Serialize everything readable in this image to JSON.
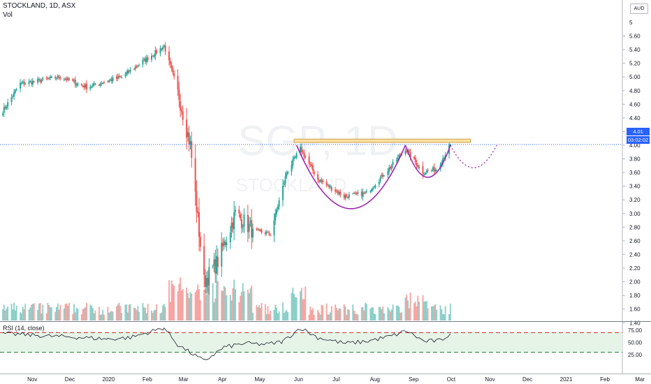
{
  "header": {
    "symbol_line": "STOCKLAND, 1D, ASX",
    "volume_label": "Vol",
    "rsi_label": "RSI (14, close)",
    "currency": "AUD",
    "watermark_symbol": "SGP, 1D",
    "watermark_name": "STOCKLAND"
  },
  "price_axis": {
    "ticks": [
      "5.60",
      "5.40",
      "5.20",
      "5.00",
      "4.80",
      "4.60",
      "4.40",
      "4.20",
      "4.00",
      "3.80",
      "3.60",
      "3.40",
      "3.20",
      "3.00",
      "2.80",
      "2.60",
      "2.40",
      "2.20",
      "2.00",
      "1.80",
      "1.60",
      "1.40"
    ],
    "top_partial": "5",
    "last_price": "4.01",
    "countdown": "03:02:02"
  },
  "rsi_axis": {
    "ticks": [
      "75.00",
      "50.00",
      "25.00"
    ]
  },
  "time_axis": {
    "months": [
      "Nov",
      "Dec",
      "2020",
      "Feb",
      "Mar",
      "Apr",
      "May",
      "Jun",
      "Jul",
      "Aug",
      "Sep",
      "Oct",
      "Nov",
      "Dec",
      "2021",
      "Feb",
      "Mar"
    ]
  },
  "colors": {
    "up": "#26a69a",
    "down": "#ef5350",
    "accent": "#2962ff",
    "pattern": "#9c27b0",
    "resistance_fill": "#ffe0a3",
    "rsi_band": "#e6f4e8"
  },
  "chart_data": [
    {
      "type": "candlestick",
      "title": "STOCKLAND, 1D, ASX",
      "unit": "AUD",
      "x_range": [
        "2019-10-14",
        "2021-03-31"
      ],
      "ylim": [
        1.3,
        5.75
      ],
      "x_months": [
        "Nov",
        "Dec",
        "2020",
        "Feb",
        "Mar",
        "Apr",
        "May",
        "Jun",
        "Jul",
        "Aug",
        "Sep",
        "Oct",
        "Nov",
        "Dec",
        "2021",
        "Feb",
        "Mar"
      ],
      "close_path": [
        {
          "x": "2019-10-14",
          "close": 4.5
        },
        {
          "x": "2019-10-28",
          "close": 4.9
        },
        {
          "x": "2019-11-29",
          "close": 5.0
        },
        {
          "x": "2019-12-20",
          "close": 4.85
        },
        {
          "x": "2020-01-17",
          "close": 5.0
        },
        {
          "x": "2020-02-20",
          "close": 5.45
        },
        {
          "x": "2020-03-02",
          "close": 4.8
        },
        {
          "x": "2020-03-12",
          "close": 4.0
        },
        {
          "x": "2020-03-23",
          "close": 2.0
        },
        {
          "x": "2020-04-03",
          "close": 2.3
        },
        {
          "x": "2020-04-17",
          "close": 3.0
        },
        {
          "x": "2020-05-01",
          "close": 2.75
        },
        {
          "x": "2020-05-15",
          "close": 2.7
        },
        {
          "x": "2020-05-28",
          "close": 3.6
        },
        {
          "x": "2020-06-08",
          "close": 3.95
        },
        {
          "x": "2020-06-22",
          "close": 3.5
        },
        {
          "x": "2020-07-13",
          "close": 3.25
        },
        {
          "x": "2020-07-31",
          "close": 3.3
        },
        {
          "x": "2020-08-20",
          "close": 3.7
        },
        {
          "x": "2020-08-31",
          "close": 3.95
        },
        {
          "x": "2020-09-14",
          "close": 3.6
        },
        {
          "x": "2020-09-25",
          "close": 3.65
        },
        {
          "x": "2020-10-06",
          "close": 4.01
        }
      ],
      "annotations": {
        "resistance_zone": {
          "from": "2020-06-03",
          "to": "2020-10-22",
          "low": 4.04,
          "high": 4.09
        },
        "last_price_line": 4.01,
        "cup": {
          "left": "2020-06-05",
          "right": "2020-08-31",
          "rim": 4.0,
          "bottom": 3.07
        },
        "handle": {
          "left": "2020-08-31",
          "right": "2020-10-06",
          "rim": 4.0,
          "bottom": 3.53
        },
        "projection": {
          "left": "2020-10-06",
          "right": "2020-11-12",
          "rim": 4.0,
          "bottom": 3.67
        }
      }
    },
    {
      "type": "bar",
      "title": "Vol",
      "y_unit": "shares",
      "note": "volume histogram, bars coloured by candle direction; spike near 2020-03-20 and 2020-06-09"
    },
    {
      "type": "line",
      "title": "RSI (14, close)",
      "ylim": [
        0,
        100
      ],
      "levels": [
        70,
        30
      ],
      "series": [
        {
          "x": [
            "2019-10-14",
            "2019-11-01",
            "2019-11-20",
            "2019-12-10",
            "2020-01-06",
            "2020-01-24",
            "2020-02-20",
            "2020-03-02",
            "2020-03-23",
            "2020-04-08",
            "2020-04-24",
            "2020-05-12",
            "2020-05-25",
            "2020-06-08",
            "2020-06-22",
            "2020-07-14",
            "2020-07-30",
            "2020-08-20",
            "2020-09-01",
            "2020-09-15",
            "2020-09-28",
            "2020-10-06"
          ],
          "values": [
            68,
            66,
            63,
            61,
            57,
            60,
            80,
            45,
            12,
            40,
            48,
            46,
            52,
            80,
            60,
            48,
            52,
            63,
            74,
            52,
            54,
            68
          ]
        }
      ]
    }
  ]
}
